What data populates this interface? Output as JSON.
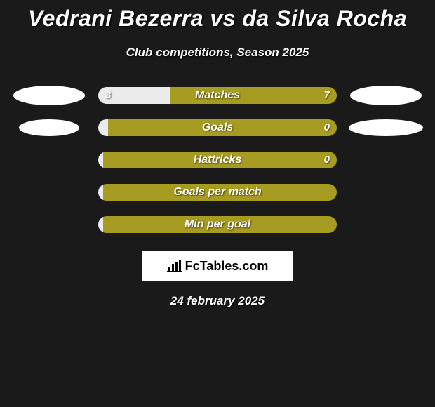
{
  "title": "Vedrani Bezerra vs da Silva Rocha",
  "subtitle": "Club competitions, Season 2025",
  "logo_text": "FcTables.com",
  "date": "24 february 2025",
  "colors": {
    "background": "#1a1a1a",
    "left_color": "#ebebeb",
    "right_color": "#a79c21",
    "bar_label": "#ffffff",
    "oval": "#ffffff",
    "logo_bg": "#ffffff",
    "logo_fg": "#000000"
  },
  "ovals": {
    "row0_left": {
      "w": 102,
      "h": 28
    },
    "row0_right": {
      "w": 102,
      "h": 28
    },
    "row1_left": {
      "w": 86,
      "h": 24
    },
    "row1_right": {
      "w": 106,
      "h": 24
    }
  },
  "bars": [
    {
      "label": "Matches",
      "left_val": "3",
      "right_val": "7",
      "left_pct": 30,
      "show_vals": true,
      "show_left_oval": true,
      "show_right_oval": true
    },
    {
      "label": "Goals",
      "left_val": "",
      "right_val": "0",
      "left_pct": 4,
      "show_vals": true,
      "show_left_oval": true,
      "show_right_oval": true
    },
    {
      "label": "Hattricks",
      "left_val": "",
      "right_val": "0",
      "left_pct": 2,
      "show_vals": true,
      "show_left_oval": false,
      "show_right_oval": false
    },
    {
      "label": "Goals per match",
      "left_val": "",
      "right_val": "",
      "left_pct": 2,
      "show_vals": false,
      "show_left_oval": false,
      "show_right_oval": false
    },
    {
      "label": "Min per goal",
      "left_val": "",
      "right_val": "",
      "left_pct": 2,
      "show_vals": false,
      "show_left_oval": false,
      "show_right_oval": false
    }
  ]
}
